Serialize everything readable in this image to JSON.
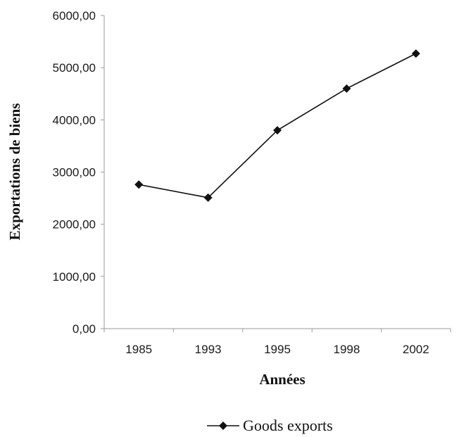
{
  "chart_data": {
    "type": "line",
    "title": "",
    "xlabel": "Années",
    "ylabel": "Exportations de biens",
    "categories": [
      "1985",
      "1993",
      "1995",
      "1998",
      "2002"
    ],
    "series": [
      {
        "name": "Goods exports",
        "values": [
          2760,
          2510,
          3800,
          4600,
          5270
        ],
        "color": "#111111",
        "marker": "diamond"
      }
    ],
    "ylim": [
      0,
      6000
    ],
    "yticks": [
      0,
      1000,
      2000,
      3000,
      4000,
      5000,
      6000
    ],
    "ytick_labels": [
      "0,00",
      "1000,00",
      "2000,00",
      "3000,00",
      "4000,00",
      "5000,00",
      "6000,00"
    ],
    "grid": false,
    "legend_position": "bottom"
  }
}
